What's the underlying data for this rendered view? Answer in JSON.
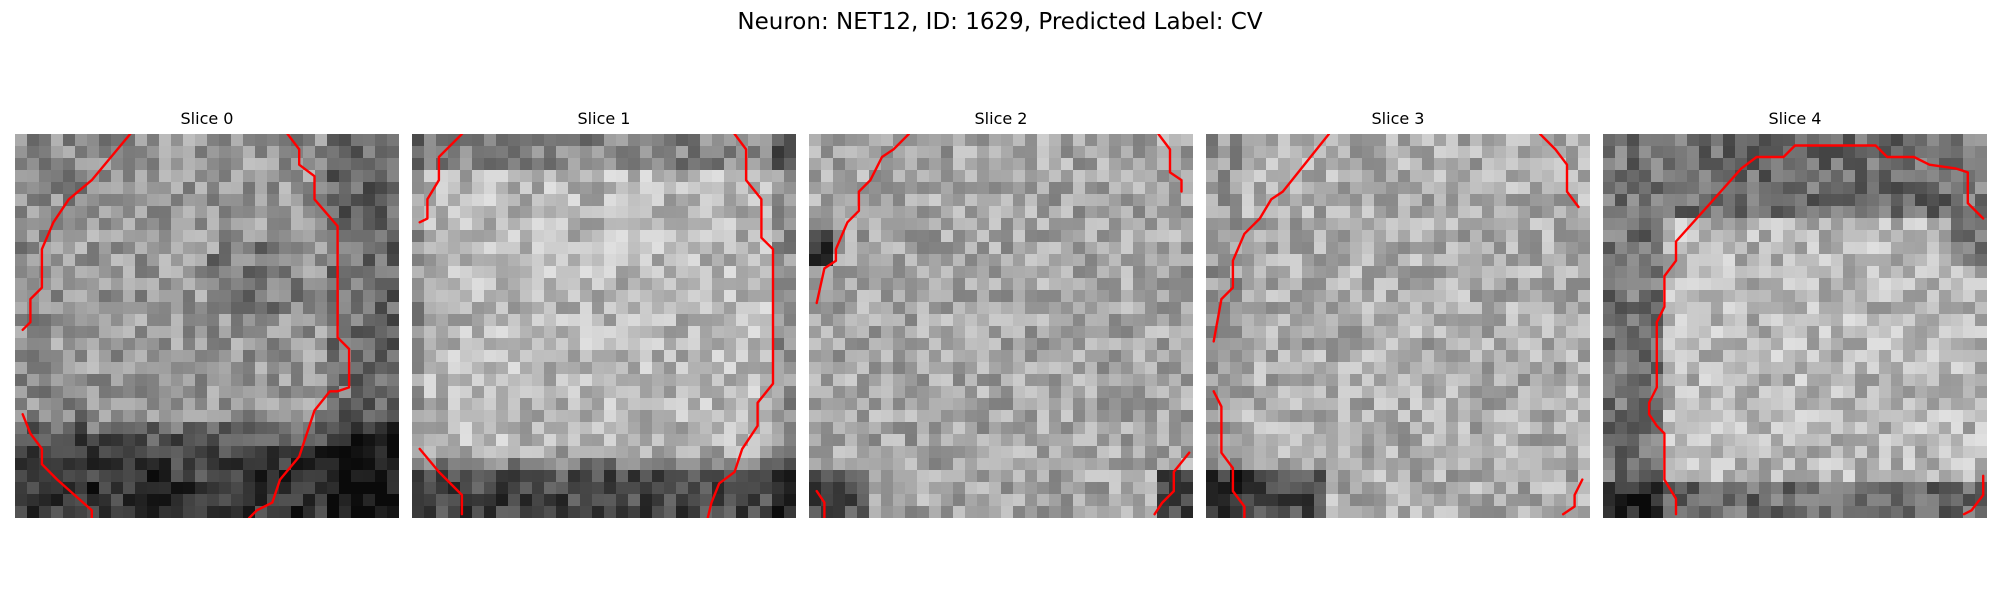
{
  "figure": {
    "title": "Neuron: NET12, ID: 1629, Predicted Label: CV"
  },
  "panels": [
    {
      "title": "Slice 0"
    },
    {
      "title": "Slice 1"
    },
    {
      "title": "Slice 2"
    },
    {
      "title": "Slice 3"
    },
    {
      "title": "Slice 4"
    }
  ],
  "colors": {
    "contour": "#ff0000",
    "background": "#ffffff"
  },
  "image_grid": {
    "colormap": "gray",
    "cells_per_side": 32
  }
}
